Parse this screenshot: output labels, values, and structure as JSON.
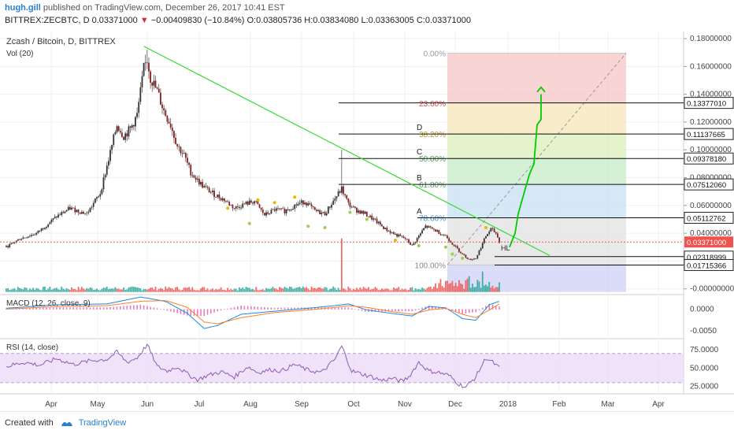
{
  "header": {
    "author": "hugh.gill",
    "published_text": "published on TradingView.com, December 26, 2017 10:41 EST",
    "symbol": "BITTREX:ZECBTC, D",
    "last": "0.03371000",
    "change_arrow": "▼",
    "change": "−0.00409830 (−10.84%)",
    "open": "O:0.03805736",
    "high": "H:0.03834080",
    "low": "L:0.03363005",
    "close": "C:0.03371000"
  },
  "footer": {
    "created_with": "Created with",
    "brand": "TradingView"
  },
  "colors": {
    "up": "#26a69a",
    "down": "#ef5350",
    "candle_body_up": "#333333",
    "candle_body_down": "#8b1d1d",
    "trendline": "#33dd33",
    "projection": "#00cc00",
    "macd_line": "#1e88e5",
    "signal_line": "#ff7f27",
    "rsi_line": "#8e5bb5",
    "rsi_band": "#ead6f6",
    "price_tag": "#ef5350"
  },
  "chart_data": [
    {
      "type": "candlestick",
      "title": "Zcash / Bitcoin, D, BITTREX",
      "x_ticks": [
        "Apr",
        "May",
        "Jun",
        "Jul",
        "Aug",
        "Sep",
        "Oct",
        "Nov",
        "Dec",
        "2018",
        "Feb",
        "Mar",
        "Apr"
      ],
      "y_ticks": [
        "0.18000000",
        "0.16000000",
        "0.14000000",
        "0.12000000",
        "0.10000000",
        "0.08000000",
        "0.06000000",
        "0.04000000",
        "0.02000000",
        "-0.00000000"
      ],
      "ylim": [
        -0.003,
        0.184
      ],
      "last_price": "0.03371000",
      "fib_levels": [
        {
          "label": "0.00%",
          "value": 0.1695
        },
        {
          "label": "23.60%",
          "value": 0.1337
        },
        {
          "label": "38.20%",
          "value": 0.1114
        },
        {
          "label": "50.00%",
          "value": 0.0938
        },
        {
          "label": "61.80%",
          "value": 0.0751
        },
        {
          "label": "78.60%",
          "value": 0.0511
        },
        {
          "label": "100.00%",
          "value": 0.0172
        }
      ],
      "level_tags": [
        "0.13377010",
        "0.11137665",
        "0.09378180",
        "0.07512060",
        "0.05112762",
        "0.02318999",
        "0.01715366"
      ],
      "level_tag_values": [
        0.13377,
        0.11138,
        0.09378,
        0.07512,
        0.05113,
        0.02319,
        0.01715
      ],
      "wave_labels": [
        "D",
        "C",
        "B",
        "A",
        "HL"
      ],
      "vol_label": "Vol (20)",
      "series": [
        {
          "name": "ZECBTC",
          "anchors": [
            [
              0,
              0.03
            ],
            [
              8,
              0.036
            ],
            [
              18,
              0.04
            ],
            [
              30,
              0.052
            ],
            [
              38,
              0.058
            ],
            [
              48,
              0.054
            ],
            [
              56,
              0.069
            ],
            [
              62,
              0.098
            ],
            [
              66,
              0.118
            ],
            [
              70,
              0.11
            ],
            [
              74,
              0.115
            ],
            [
              78,
              0.125
            ],
            [
              82,
              0.158
            ],
            [
              84,
              0.165
            ],
            [
              86,
              0.152
            ],
            [
              90,
              0.142
            ],
            [
              94,
              0.128
            ],
            [
              98,
              0.118
            ],
            [
              102,
              0.103
            ],
            [
              106,
              0.096
            ],
            [
              110,
              0.084
            ],
            [
              114,
              0.078
            ],
            [
              118,
              0.073
            ],
            [
              124,
              0.068
            ],
            [
              130,
              0.064
            ],
            [
              136,
              0.058
            ],
            [
              142,
              0.061
            ],
            [
              148,
              0.063
            ],
            [
              154,
              0.053
            ],
            [
              160,
              0.057
            ],
            [
              166,
              0.056
            ],
            [
              172,
              0.06
            ],
            [
              178,
              0.063
            ],
            [
              184,
              0.056
            ],
            [
              190,
              0.054
            ],
            [
              196,
              0.065
            ],
            [
              200,
              0.072
            ],
            [
              204,
              0.061
            ],
            [
              208,
              0.057
            ],
            [
              214,
              0.054
            ],
            [
              220,
              0.049
            ],
            [
              226,
              0.043
            ],
            [
              232,
              0.039
            ],
            [
              238,
              0.036
            ],
            [
              242,
              0.031
            ],
            [
              246,
              0.038
            ],
            [
              250,
              0.045
            ],
            [
              256,
              0.042
            ],
            [
              262,
              0.038
            ],
            [
              268,
              0.03
            ],
            [
              272,
              0.025
            ],
            [
              276,
              0.021
            ],
            [
              280,
              0.022
            ],
            [
              283,
              0.03
            ],
            [
              286,
              0.038
            ],
            [
              289,
              0.043
            ],
            [
              292,
              0.04
            ],
            [
              294,
              0.034
            ]
          ]
        }
      ]
    },
    {
      "type": "line",
      "title": "MACD (12, 26, close, 9)",
      "y_ticks": [
        "0.0000",
        "-0.0050"
      ],
      "ylim": [
        -0.0065,
        0.003
      ],
      "series": [
        {
          "name": "MACD",
          "anchors": [
            [
              0,
              0.0002
            ],
            [
              30,
              0.001
            ],
            [
              60,
              0.0012
            ],
            [
              80,
              0.0028
            ],
            [
              95,
              0.0018
            ],
            [
              108,
              -0.001
            ],
            [
              118,
              -0.0045
            ],
            [
              126,
              -0.0038
            ],
            [
              140,
              -0.0012
            ],
            [
              160,
              -0.0005
            ],
            [
              180,
              0.0002
            ],
            [
              196,
              0.0008
            ],
            [
              204,
              0.0012
            ],
            [
              215,
              -0.0002
            ],
            [
              230,
              -0.001
            ],
            [
              242,
              -0.0016
            ],
            [
              252,
              0.0006
            ],
            [
              262,
              0.0003
            ],
            [
              272,
              -0.0022
            ],
            [
              280,
              -0.0026
            ],
            [
              288,
              0.001
            ],
            [
              294,
              0.0018
            ]
          ]
        },
        {
          "name": "Signal",
          "anchors": [
            [
              0,
              0.0
            ],
            [
              30,
              0.0006
            ],
            [
              60,
              0.0008
            ],
            [
              80,
              0.0018
            ],
            [
              95,
              0.002
            ],
            [
              108,
              0.0004
            ],
            [
              118,
              -0.003
            ],
            [
              126,
              -0.0034
            ],
            [
              140,
              -0.002
            ],
            [
              160,
              -0.0008
            ],
            [
              180,
              -0.0002
            ],
            [
              196,
              0.0004
            ],
            [
              204,
              0.0008
            ],
            [
              215,
              0.0004
            ],
            [
              230,
              -0.0006
            ],
            [
              242,
              -0.0012
            ],
            [
              252,
              -0.0002
            ],
            [
              262,
              0.0002
            ],
            [
              272,
              -0.0012
            ],
            [
              280,
              -0.002
            ],
            [
              288,
              -0.0002
            ],
            [
              294,
              0.0012
            ]
          ]
        }
      ]
    },
    {
      "type": "line",
      "title": "RSI (14, close)",
      "y_ticks": [
        "75.0000",
        "50.0000",
        "25.0000"
      ],
      "ylim": [
        17,
        88
      ],
      "band": [
        30,
        70
      ],
      "series": [
        {
          "name": "RSI",
          "anchors": [
            [
              0,
              52
            ],
            [
              10,
              58
            ],
            [
              20,
              54
            ],
            [
              30,
              63
            ],
            [
              40,
              55
            ],
            [
              50,
              60
            ],
            [
              60,
              62
            ],
            [
              66,
              72
            ],
            [
              72,
              58
            ],
            [
              78,
              64
            ],
            [
              84,
              82
            ],
            [
              90,
              52
            ],
            [
              96,
              46
            ],
            [
              102,
              52
            ],
            [
              108,
              42
            ],
            [
              114,
              34
            ],
            [
              120,
              40
            ],
            [
              128,
              45
            ],
            [
              136,
              38
            ],
            [
              144,
              52
            ],
            [
              150,
              44
            ],
            [
              158,
              48
            ],
            [
              164,
              46
            ],
            [
              172,
              55
            ],
            [
              180,
              47
            ],
            [
              188,
              44
            ],
            [
              196,
              62
            ],
            [
              200,
              80
            ],
            [
              206,
              46
            ],
            [
              212,
              42
            ],
            [
              218,
              38
            ],
            [
              224,
              33
            ],
            [
              230,
              36
            ],
            [
              236,
              32
            ],
            [
              240,
              38
            ],
            [
              246,
              58
            ],
            [
              252,
              46
            ],
            [
              258,
              44
            ],
            [
              264,
              40
            ],
            [
              270,
              28
            ],
            [
              274,
              24
            ],
            [
              280,
              38
            ],
            [
              286,
              64
            ],
            [
              290,
              58
            ],
            [
              294,
              50
            ]
          ]
        }
      ]
    }
  ]
}
